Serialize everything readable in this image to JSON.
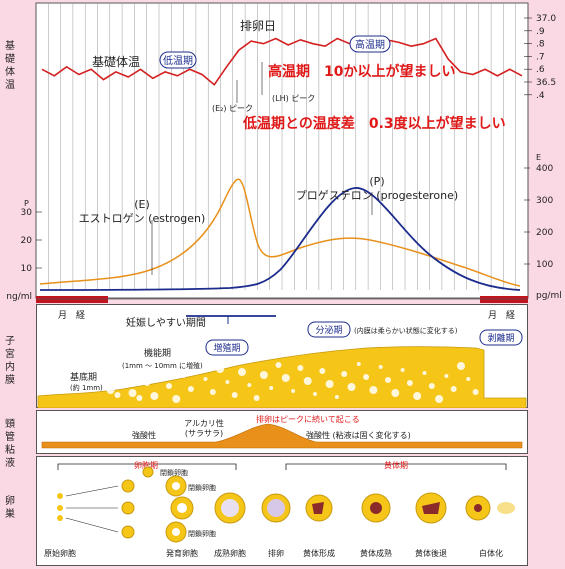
{
  "side_labels": {
    "bbt": "基礎体温",
    "endometrium": "子宮内膜",
    "mucus": "頸管粘液",
    "ovary": "卵巣"
  },
  "bbt": {
    "label": "基礎体温",
    "low_phase": "低温期",
    "high_phase": "高温期",
    "ovulation_day": "排卵日",
    "note_high": "高温期　10か以上が望ましい",
    "note_diff": "低温期との温度差　0.3度以上が望ましい",
    "e2_peak": "(E₂) ピーク",
    "lh_peak": "(LH) ピーク",
    "axis_ticks": [
      "37.0",
      ".9",
      ".8",
      ".7",
      ".6",
      "36.5",
      ".4"
    ],
    "temps": [
      36.6,
      36.55,
      36.62,
      36.56,
      36.6,
      36.52,
      36.58,
      36.54,
      36.6,
      36.53,
      36.58,
      36.55,
      36.6,
      36.56,
      36.48,
      36.62,
      36.75,
      36.82,
      36.8,
      36.84,
      36.79,
      36.83,
      36.8,
      36.78,
      36.84,
      36.8,
      36.82,
      36.79,
      36.83,
      36.81,
      36.78,
      36.8,
      36.84,
      36.68,
      36.58,
      36.56,
      36.6,
      36.55,
      36.6,
      36.55
    ]
  },
  "hormone": {
    "left_axis_label": "P",
    "left_ticks": [
      "30",
      "20",
      "10",
      "ng/ml"
    ],
    "right_axis_label": "E",
    "right_ticks": [
      "400",
      "300",
      "200",
      "100",
      "pg/ml"
    ],
    "estrogen_symbol": "(E)",
    "estrogen_label": "エストロゲン (estrogen)",
    "progesterone_symbol": "(P)",
    "progesterone_label": "プロゲステロン (progesterone)",
    "period_left": "月　経",
    "period_right": "月　経",
    "estrogen_color": "#e8901a",
    "progesterone_color": "#1c2c8c"
  },
  "endometrium": {
    "fertile_period": "妊娠しやすい期間",
    "proliferative": "増殖期",
    "secretory": "分泌期",
    "secretory_note": "(内膜は柔らかい状態に変化する)",
    "shedding": "剥離期",
    "functional_layer": "機能期",
    "functional_note": "(1mm 〜 10mm に増殖)",
    "basal_layer": "基底期",
    "basal_note": "(約 1mm)"
  },
  "mucus": {
    "ovulation_note": "排卵はピークに続いて起こる",
    "alkaline": "アルカリ性",
    "alkaline_note": "(サラサラ)",
    "acidic_left": "強酸性",
    "acidic_right": "強酸性 (粘液は固く変化する)"
  },
  "ovary": {
    "follicular_phase": "卵胞期",
    "luteal_phase": "黄体期",
    "atretic_1": "閉鎖卵胞",
    "atretic_2": "閉鎖卵胞",
    "atretic_3": "閉鎖卵胞",
    "stages": [
      "原始卵胞",
      "発育卵胞",
      "成熟卵胞",
      "排卵",
      "黄体形成",
      "黄体成熟",
      "黄体後退",
      "白体化"
    ]
  },
  "colors": {
    "background": "#fbd9e4",
    "bbt_line": "#d42020",
    "endometrium": "#f5c518",
    "mucus": "#e8901a",
    "phase_blue": "#1c2c8c",
    "period_red": "#c0141e"
  }
}
